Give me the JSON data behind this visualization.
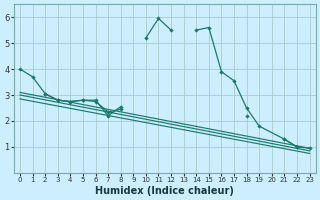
{
  "title": "",
  "xlabel": "Humidex (Indice chaleur)",
  "bg_color": "#cceeff",
  "grid_color": "#aacccc",
  "line_color": "#1a7a6a",
  "xlim": [
    -0.5,
    23.5
  ],
  "ylim": [
    0,
    6.5
  ],
  "xticks": [
    0,
    1,
    2,
    3,
    4,
    5,
    6,
    7,
    8,
    9,
    10,
    11,
    12,
    13,
    14,
    15,
    16,
    17,
    18,
    19,
    20,
    21,
    22,
    23
  ],
  "yticks": [
    1,
    2,
    3,
    4,
    5,
    6
  ],
  "series": [
    {
      "x": [
        0,
        1,
        2,
        3,
        4,
        5,
        6,
        7,
        8,
        10,
        11,
        12,
        14,
        15,
        16,
        17,
        18,
        19,
        21,
        22,
        23
      ],
      "y": [
        4.0,
        3.7,
        3.05,
        2.8,
        2.75,
        2.8,
        2.8,
        2.2,
        2.55,
        5.2,
        5.95,
        5.5,
        5.5,
        5.6,
        3.9,
        3.55,
        2.5,
        1.8,
        1.3,
        1.0,
        0.95
      ]
    },
    {
      "x": [
        2,
        3,
        4,
        5,
        6,
        7,
        8,
        18,
        21,
        22
      ],
      "y": [
        3.05,
        2.8,
        2.75,
        2.8,
        2.75,
        2.35,
        2.45,
        2.2,
        1.3,
        1.0
      ]
    },
    {
      "x": [
        0,
        23
      ],
      "y": [
        3.1,
        0.95
      ]
    },
    {
      "x": [
        0,
        23
      ],
      "y": [
        3.0,
        0.85
      ]
    },
    {
      "x": [
        0,
        23
      ],
      "y": [
        2.85,
        0.75
      ]
    }
  ]
}
